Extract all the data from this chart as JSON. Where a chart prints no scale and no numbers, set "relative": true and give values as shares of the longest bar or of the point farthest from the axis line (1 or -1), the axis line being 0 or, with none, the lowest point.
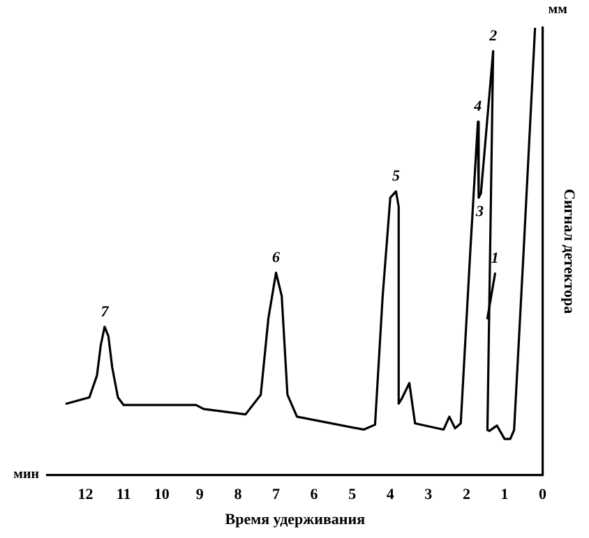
{
  "chart_data": {
    "type": "line",
    "xlabel": "Время удерживания",
    "ylabel": "Сигнал детектора",
    "relative": true,
    "xlim": [
      13,
      0
    ],
    "xticks": [
      12,
      11,
      10,
      9,
      8,
      7,
      6,
      5,
      4,
      3,
      2,
      1,
      0
    ],
    "grid": false,
    "legend": false,
    "marker": "none",
    "line_style": "solid",
    "series": [
      {
        "color": "#000000",
        "x": [
          12.5,
          11.9,
          11.7,
          11.6,
          11.5,
          11.4,
          11.3,
          11.15,
          11.0,
          9.1,
          8.9,
          7.8,
          7.4,
          7.2,
          7.0,
          6.85,
          6.7,
          6.45,
          4.7,
          4.4,
          4.2,
          4.0,
          3.85,
          3.78,
          3.78,
          3.7,
          3.5,
          3.35,
          2.6,
          2.45,
          2.3,
          2.15,
          1.9,
          1.7,
          1.68,
          1.62,
          1.3,
          1.45,
          1.4,
          1.2,
          1.0,
          0.85,
          0.75,
          0.5,
          0.2
        ],
        "values": [
          0.159,
          0.173,
          0.222,
          0.29,
          0.331,
          0.31,
          0.24,
          0.173,
          0.156,
          0.156,
          0.147,
          0.135,
          0.179,
          0.35,
          0.452,
          0.4,
          0.179,
          0.13,
          0.101,
          0.112,
          0.4,
          0.62,
          0.634,
          0.6,
          0.159,
          0.17,
          0.205,
          0.115,
          0.101,
          0.13,
          0.104,
          0.115,
          0.5,
          0.79,
          0.62,
          0.63,
          0.948,
          0.1,
          0.098,
          0.11,
          0.08,
          0.08,
          0.1,
          0.5,
          1
        ]
      },
      {
        "color": "#000000",
        "x": [
          1.45,
          1.25
        ],
        "values": [
          0.35,
          0.45
        ]
      }
    ],
    "annotations": [
      "мин",
      "мм",
      {
        "text": "7",
        "x": 11.5,
        "y": 0.331
      },
      {
        "text": "6",
        "x": 7.0,
        "y": 0.452
      },
      {
        "text": "5",
        "x": 3.85,
        "y": 0.634
      },
      {
        "text": "4",
        "x": 1.7,
        "y": 0.79
      },
      {
        "text": "3",
        "x": 1.65,
        "y": 0.62
      },
      {
        "text": "2",
        "x": 1.3,
        "y": 0.948
      },
      {
        "text": "1",
        "x": 1.25,
        "y": 0.45
      }
    ]
  }
}
